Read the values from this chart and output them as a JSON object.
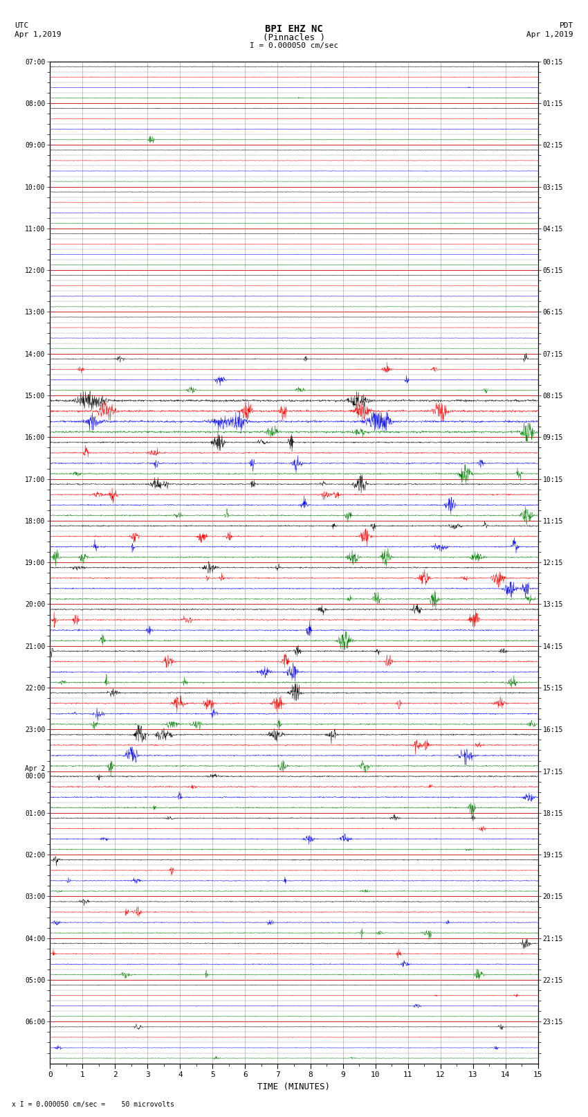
{
  "title_line1": "BPI EHZ NC",
  "title_line2": "(Pinnacles )",
  "scale_label": "I = 0.000050 cm/sec",
  "left_label_top": "UTC",
  "left_label_date": "Apr 1,2019",
  "right_label_top": "PDT",
  "right_label_date": "Apr 1,2019",
  "xlabel": "TIME (MINUTES)",
  "bottom_note": "x I = 0.000050 cm/sec =    50 microvolts",
  "utc_times": [
    "07:00",
    "",
    "",
    "",
    "08:00",
    "",
    "",
    "",
    "09:00",
    "",
    "",
    "",
    "10:00",
    "",
    "",
    "",
    "11:00",
    "",
    "",
    "",
    "12:00",
    "",
    "",
    "",
    "13:00",
    "",
    "",
    "",
    "14:00",
    "",
    "",
    "",
    "15:00",
    "",
    "",
    "",
    "16:00",
    "",
    "",
    "",
    "17:00",
    "",
    "",
    "",
    "18:00",
    "",
    "",
    "",
    "19:00",
    "",
    "",
    "",
    "20:00",
    "",
    "",
    "",
    "21:00",
    "",
    "",
    "",
    "22:00",
    "",
    "",
    "",
    "23:00",
    "",
    "",
    "",
    "Apr 2\n00:00",
    "",
    "",
    "",
    "01:00",
    "",
    "",
    "",
    "02:00",
    "",
    "",
    "",
    "03:00",
    "",
    "",
    "",
    "04:00",
    "",
    "",
    "",
    "05:00",
    "",
    "",
    "",
    "06:00",
    "",
    "",
    ""
  ],
  "pdt_times": [
    "00:15",
    "",
    "",
    "",
    "01:15",
    "",
    "",
    "",
    "02:15",
    "",
    "",
    "",
    "03:15",
    "",
    "",
    "",
    "04:15",
    "",
    "",
    "",
    "05:15",
    "",
    "",
    "",
    "06:15",
    "",
    "",
    "",
    "07:15",
    "",
    "",
    "",
    "08:15",
    "",
    "",
    "",
    "09:15",
    "",
    "",
    "",
    "10:15",
    "",
    "",
    "",
    "11:15",
    "",
    "",
    "",
    "12:15",
    "",
    "",
    "",
    "13:15",
    "",
    "",
    "",
    "14:15",
    "",
    "",
    "",
    "15:15",
    "",
    "",
    "",
    "16:15",
    "",
    "",
    "",
    "17:15",
    "",
    "",
    "",
    "18:15",
    "",
    "",
    "",
    "19:15",
    "",
    "",
    "",
    "20:15",
    "",
    "",
    "",
    "21:15",
    "",
    "",
    "",
    "22:15",
    "",
    "",
    "",
    "23:15",
    "",
    "",
    ""
  ],
  "trace_colors": [
    "black",
    "red",
    "blue",
    "green"
  ],
  "n_traces": 96,
  "minutes_per_trace": 15,
  "x_ticks": [
    0,
    1,
    2,
    3,
    4,
    5,
    6,
    7,
    8,
    9,
    10,
    11,
    12,
    13,
    14,
    15
  ],
  "background_color": "white",
  "noise_seed": 42,
  "figsize": [
    8.5,
    16.13
  ],
  "dpi": 100
}
